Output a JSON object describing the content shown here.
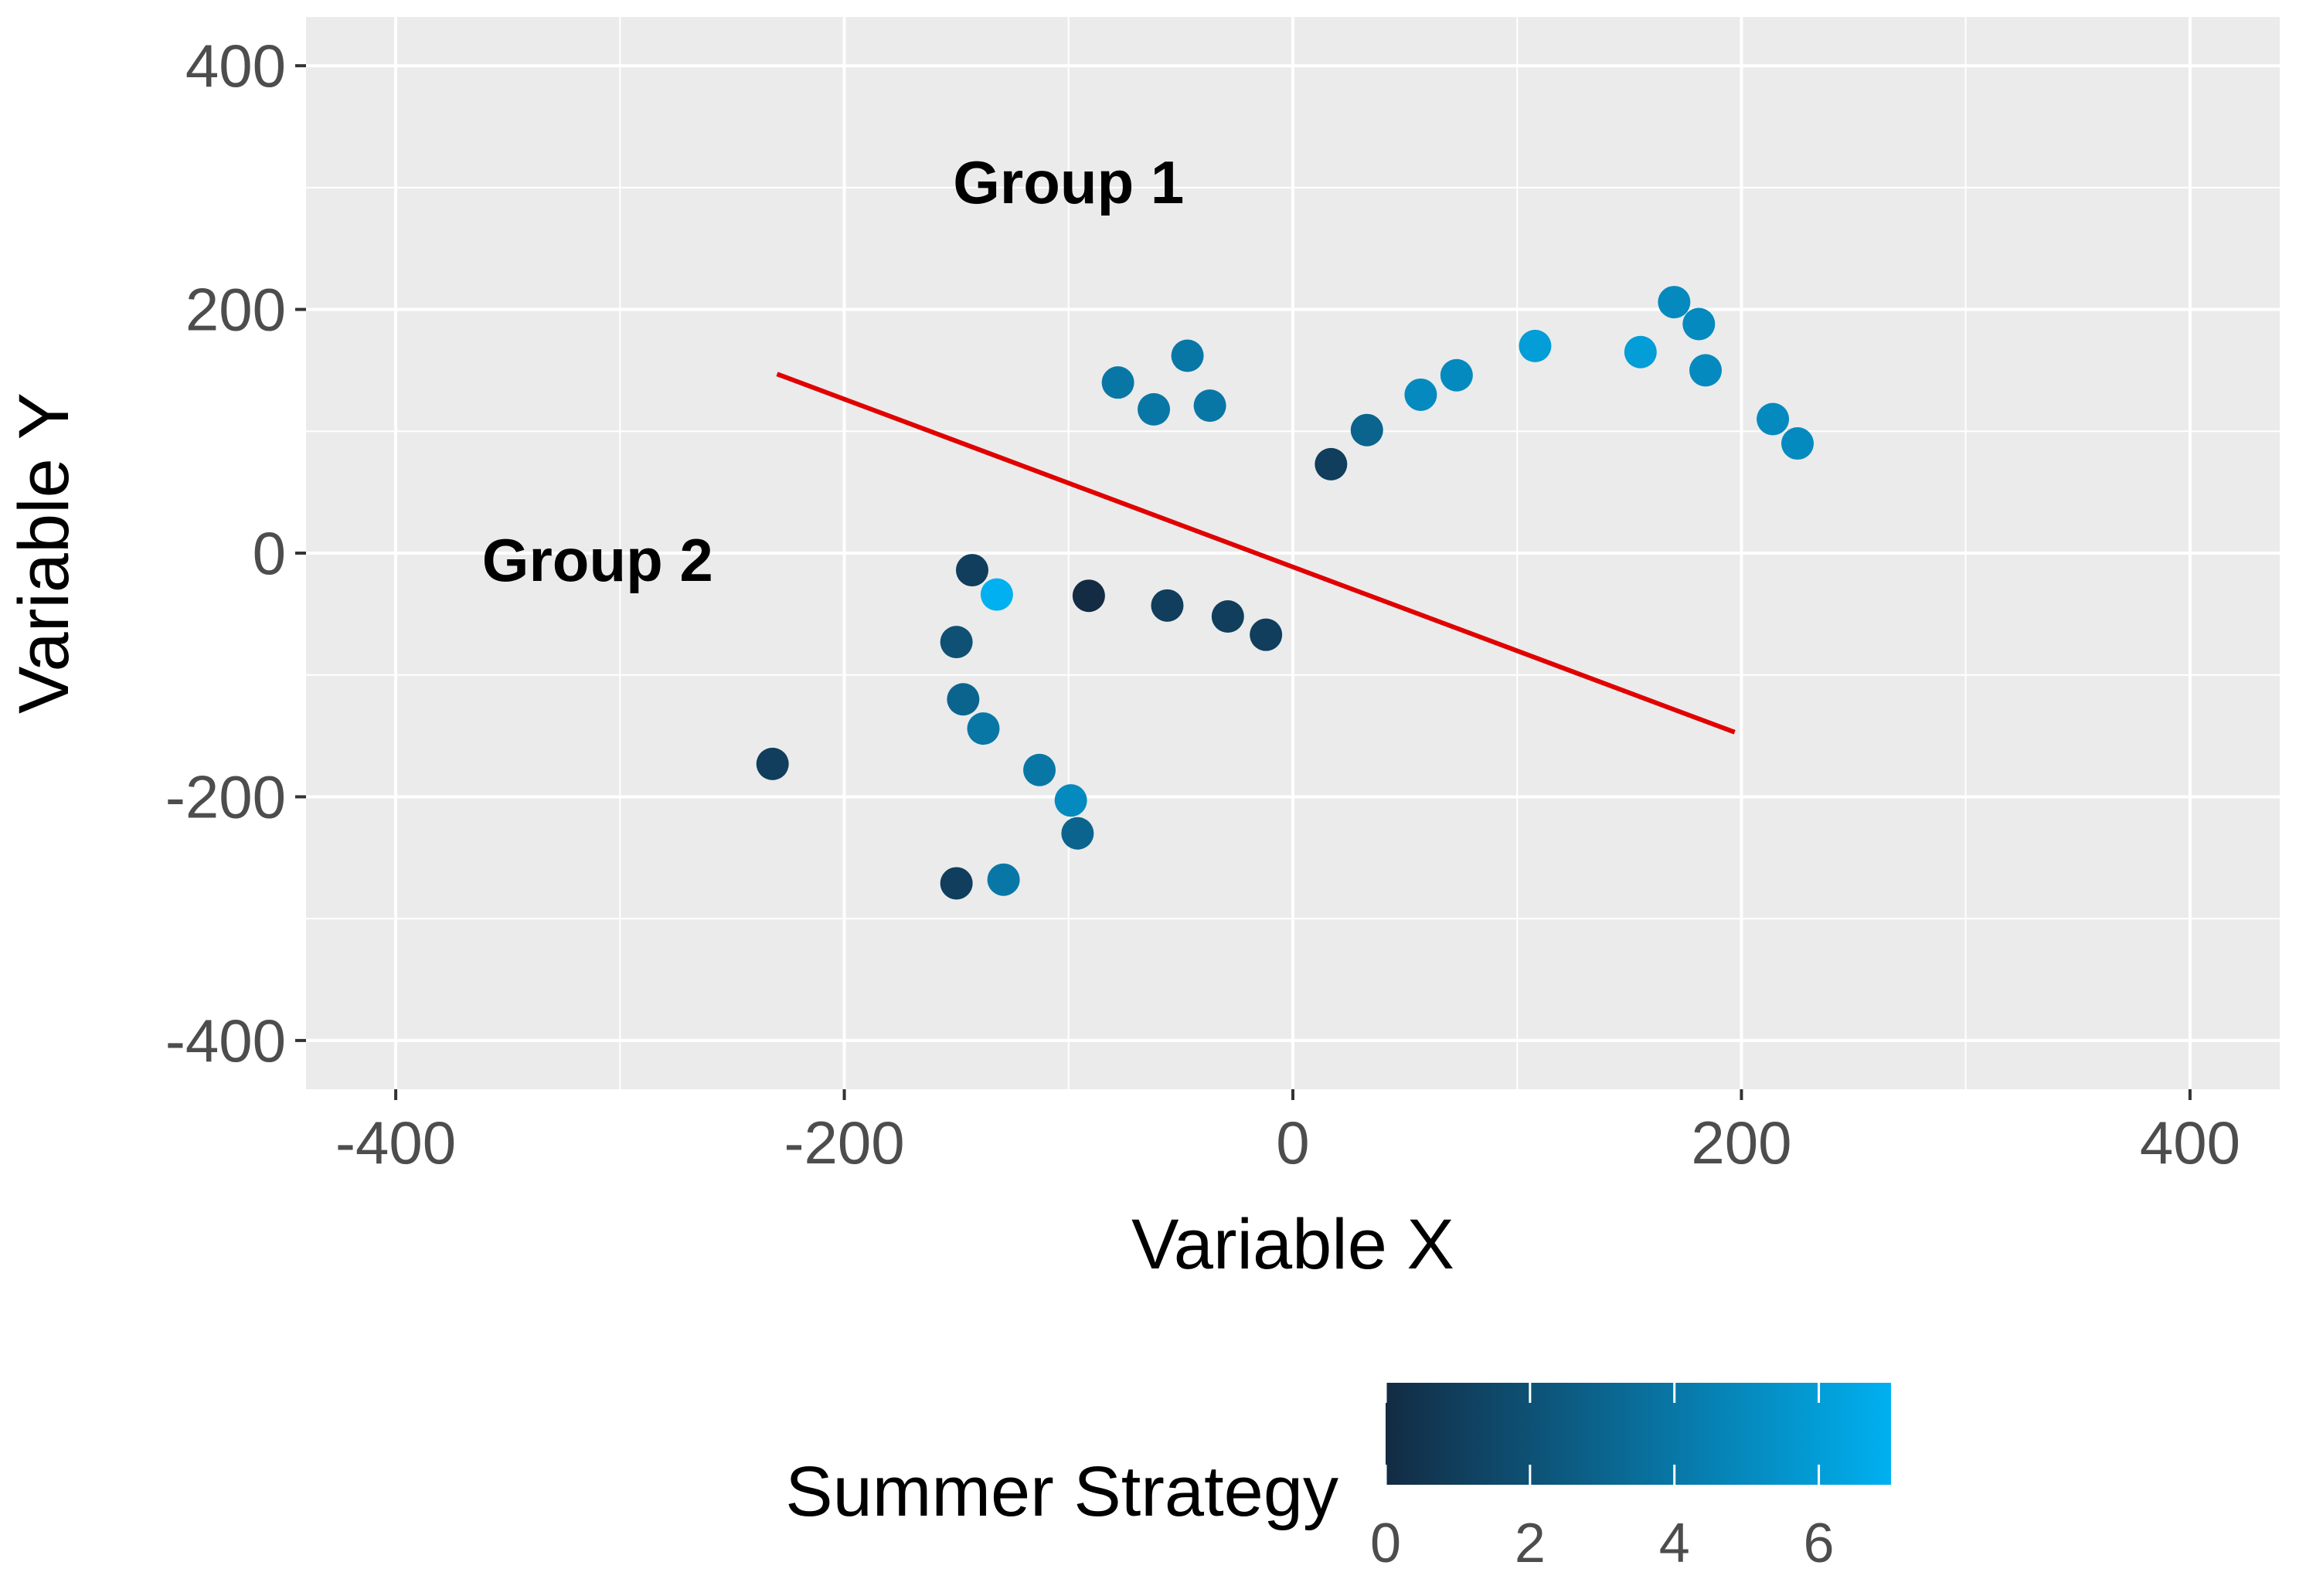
{
  "chart_data": {
    "type": "scatter",
    "xlabel": "Variable X",
    "ylabel": "Variable Y",
    "xlim": [
      -440,
      440
    ],
    "ylim": [
      -440,
      440
    ],
    "x_ticks": [
      -400,
      -200,
      0,
      200,
      400
    ],
    "y_ticks": [
      -400,
      -200,
      0,
      200,
      400
    ],
    "x_tick_labels": [
      "-400",
      "-200",
      "0",
      "200",
      "400"
    ],
    "y_tick_labels": [
      "-400",
      "-200",
      "0",
      "200",
      "400"
    ],
    "grid": true,
    "panel_color": "#ebebeb",
    "grid_color": "#ffffff",
    "color_scale": {
      "name": "Summer Strategy",
      "low_color": "#132b43",
      "high_color": "#00b0f0",
      "range": [
        0,
        7
      ],
      "ticks": [
        0,
        2,
        4,
        6
      ],
      "tick_labels": [
        "0",
        "2",
        "4",
        "6"
      ],
      "position": "bottom"
    },
    "annotations": [
      {
        "text": "Group 1",
        "x": -100,
        "y": 305
      },
      {
        "text": "Group 2",
        "x": -310,
        "y": -5
      }
    ],
    "line": {
      "color": "#e00000",
      "points": [
        [
          -230,
          147
        ],
        [
          197,
          -147
        ]
      ]
    },
    "points": [
      {
        "x": -78,
        "y": 140,
        "c": 4
      },
      {
        "x": -62,
        "y": 118,
        "c": 4
      },
      {
        "x": -47,
        "y": 162,
        "c": 4
      },
      {
        "x": -37,
        "y": 121,
        "c": 4
      },
      {
        "x": 17,
        "y": 73,
        "c": 1
      },
      {
        "x": 33,
        "y": 101,
        "c": 3
      },
      {
        "x": 57,
        "y": 130,
        "c": 5
      },
      {
        "x": 73,
        "y": 146,
        "c": 5
      },
      {
        "x": 108,
        "y": 170,
        "c": 6
      },
      {
        "x": 155,
        "y": 165,
        "c": 6
      },
      {
        "x": 170,
        "y": 206,
        "c": 5
      },
      {
        "x": 181,
        "y": 188,
        "c": 5
      },
      {
        "x": 184,
        "y": 150,
        "c": 5
      },
      {
        "x": 214,
        "y": 110,
        "c": 5
      },
      {
        "x": 225,
        "y": 90,
        "c": 5
      },
      {
        "x": -143,
        "y": -14,
        "c": 1
      },
      {
        "x": -132,
        "y": -34,
        "c": 7
      },
      {
        "x": -91,
        "y": -35,
        "c": 0
      },
      {
        "x": -56,
        "y": -43,
        "c": 1
      },
      {
        "x": -29,
        "y": -52,
        "c": 1
      },
      {
        "x": -12,
        "y": -67,
        "c": 1
      },
      {
        "x": -150,
        "y": -73,
        "c": 2
      },
      {
        "x": -147,
        "y": -120,
        "c": 3
      },
      {
        "x": -138,
        "y": -144,
        "c": 4
      },
      {
        "x": -113,
        "y": -178,
        "c": 4
      },
      {
        "x": -99,
        "y": -203,
        "c": 5
      },
      {
        "x": -96,
        "y": -230,
        "c": 3
      },
      {
        "x": -150,
        "y": -271,
        "c": 1
      },
      {
        "x": -129,
        "y": -268,
        "c": 4
      },
      {
        "x": -232,
        "y": -173,
        "c": 1
      }
    ]
  }
}
